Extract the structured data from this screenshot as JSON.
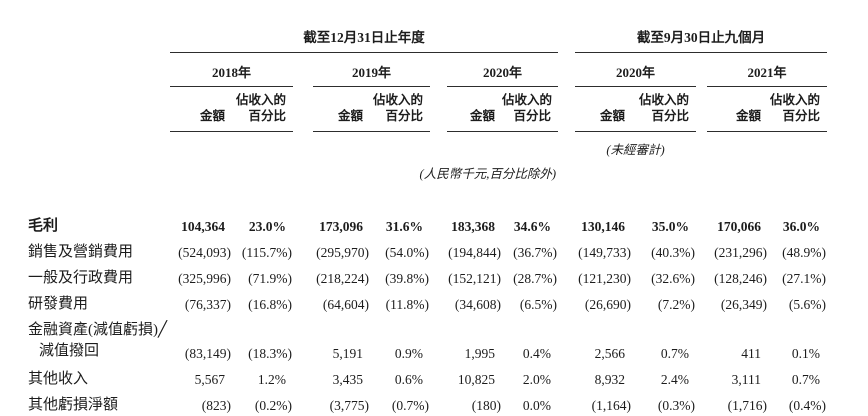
{
  "table": {
    "section_headers": {
      "annual": "截至12月31日止年度",
      "nine_months": "截至9月30日止九個月"
    },
    "year_headers": [
      "2018年",
      "2019年",
      "2020年",
      "2020年",
      "2021年"
    ],
    "col_headers": {
      "amount": "金額",
      "pct_line1": "佔收入的",
      "pct_line2": "百分比"
    },
    "notes": {
      "unaudited": "(未經審計)",
      "currency": "(人民幣千元,百分比除外)"
    },
    "rows": [
      {
        "label": "毛利",
        "bold": true,
        "values": [
          "104,364",
          "23.0%",
          "173,096",
          "31.6%",
          "183,368",
          "34.6%",
          "130,146",
          "35.0%",
          "170,066",
          "36.0%"
        ]
      },
      {
        "label": "銷售及營銷費用",
        "values": [
          "(524,093)",
          "(115.7%)",
          "(295,970)",
          "(54.0%)",
          "(194,844)",
          "(36.7%)",
          "(149,733)",
          "(40.3%)",
          "(231,296)",
          "(48.9%)"
        ]
      },
      {
        "label": "一般及行政費用",
        "values": [
          "(325,996)",
          "(71.9%)",
          "(218,224)",
          "(39.8%)",
          "(152,121)",
          "(28.7%)",
          "(121,230)",
          "(32.6%)",
          "(128,246)",
          "(27.1%)"
        ]
      },
      {
        "label": "研發費用",
        "values": [
          "(76,337)",
          "(16.8%)",
          "(64,604)",
          "(11.8%)",
          "(34,608)",
          "(6.5%)",
          "(26,690)",
          "(7.2%)",
          "(26,349)",
          "(5.6%)"
        ]
      },
      {
        "label": "金融資產(減值虧損)╱",
        "label2": "減值撥回",
        "values": [
          "(83,149)",
          "(18.3%)",
          "5,191",
          "0.9%",
          "1,995",
          "0.4%",
          "2,566",
          "0.7%",
          "411",
          "0.1%"
        ]
      },
      {
        "label": "其他收入",
        "values": [
          "5,567",
          "1.2%",
          "3,435",
          "0.6%",
          "10,825",
          "2.0%",
          "8,932",
          "2.4%",
          "3,111",
          "0.7%"
        ]
      },
      {
        "label": "其他虧損淨額",
        "values": [
          "(823)",
          "(0.2%)",
          "(3,775)",
          "(0.7%)",
          "(180)",
          "0.0%",
          "(1,164)",
          "(0.3%)",
          "(1,716)",
          "(0.4%)"
        ]
      }
    ]
  }
}
